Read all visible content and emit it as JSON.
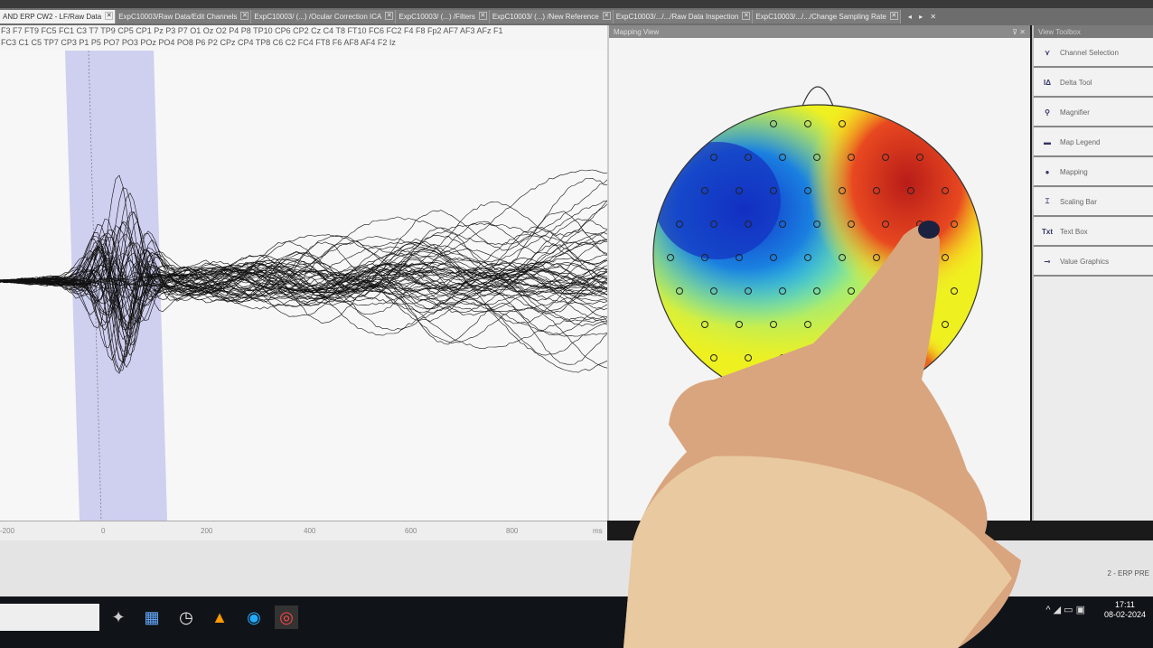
{
  "tabs": [
    {
      "label": "AND ERP CW2 - LF/Raw Data",
      "active": true
    },
    {
      "label": "ExpC10003/Raw Data/Edit Channels"
    },
    {
      "label": "ExpC10003/ (...) /Ocular Correction ICA"
    },
    {
      "label": "ExpC10003/ (...) /Filters"
    },
    {
      "label": "ExpC10003/ (...) /New Reference"
    },
    {
      "label": "ExpC10003/.../.../Raw Data Inspection"
    },
    {
      "label": "ExpC10003/.../.../Change Sampling Rate"
    }
  ],
  "tab_nav": "◂ ▸ ✕",
  "channels": {
    "line1": "F3 F7 FT9 FC5 FC1 C3 T7 TP9 CP5 CP1 Pz P3 P7 O1 Oz O2 P4 P8 TP10 CP6 CP2 Cz C4 T8 FT10 FC6 FC2 F4 F8 Fp2 AF7 AF3 AFz F1",
    "line2": "FC3 C1 C5 TP7 CP3 P1 P5 PO7 PO3 POz PO4 PO8 P6 P2 CPz CP4 TP8 C6 C2 FC4 FT8 F6 AF8 AF4 F2 Iz"
  },
  "axis": {
    "ticks": [
      "-200",
      "0",
      "200",
      "400",
      "600",
      "800"
    ],
    "unit": "ms"
  },
  "mapping_view": {
    "title": "Mapping View",
    "controls": "⊽ ✕"
  },
  "toolbox": {
    "title": "View Toolbox",
    "items": [
      {
        "label": "Channel Selection",
        "icon": "channel-selection-icon"
      },
      {
        "label": "Delta Tool",
        "icon": "delta-tool-icon"
      },
      {
        "label": "Magnifier",
        "icon": "magnifier-icon"
      },
      {
        "label": "Map Legend",
        "icon": "map-legend-icon"
      },
      {
        "label": "Mapping",
        "icon": "mapping-icon"
      },
      {
        "label": "Scaling Bar",
        "icon": "scaling-bar-icon"
      },
      {
        "label": "Text Box",
        "icon": "text-box-icon"
      },
      {
        "label": "Value Graphics",
        "icon": "value-graphics-icon"
      }
    ]
  },
  "status_text": "2 - ERP PRE",
  "clock": {
    "time": "17:11",
    "date": "08-02-2024"
  },
  "colors": {
    "highlight": "#c8c8ee",
    "map_red": "#c8281c",
    "map_blue": "#1438c8",
    "map_yellow": "#f0f020"
  }
}
